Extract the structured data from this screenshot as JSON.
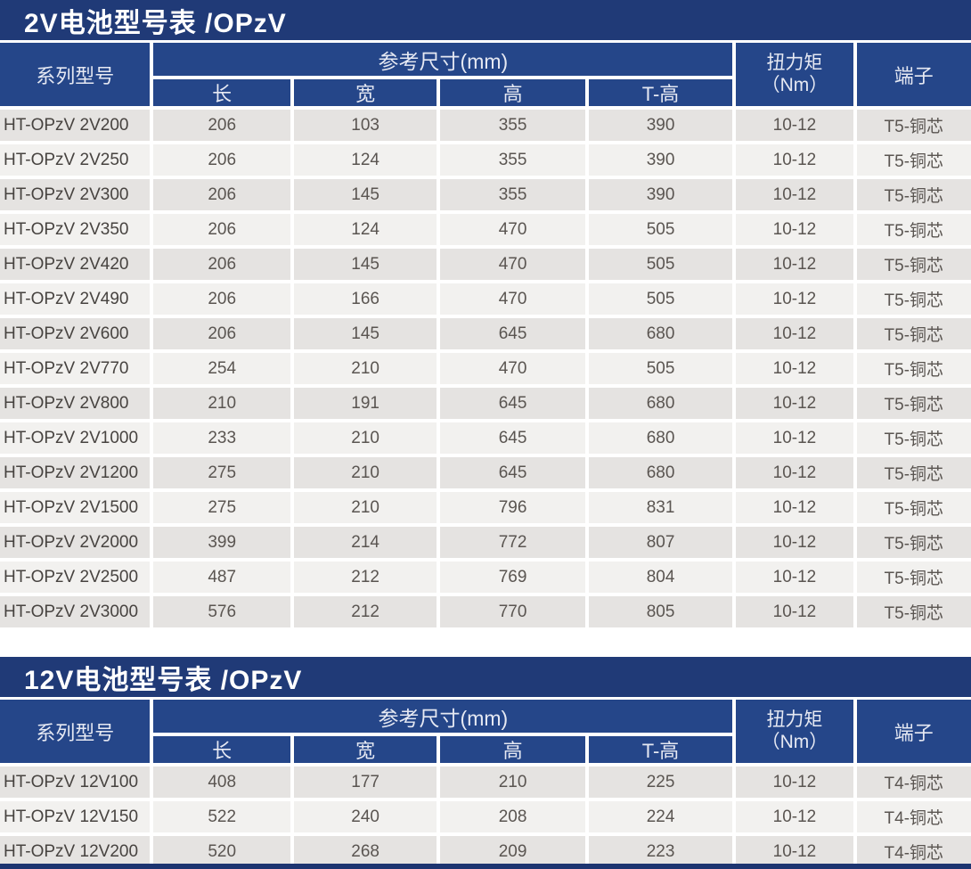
{
  "colors": {
    "title_bar_bg": "#203a77",
    "header_bg": "#254689",
    "row_dark": "#e5e3e1",
    "row_light": "#f2f1ef",
    "bottom_strip": "#1d3470",
    "title_text": "#ffffff",
    "header_text": "#e6e9f3",
    "cell_text": "#5a5551"
  },
  "tables": [
    {
      "title": "2V电池型号表 /OPzV",
      "header": {
        "series_model": "系列型号",
        "dimensions_group": "参考尺寸(mm)",
        "dim_cols": [
          "长",
          "宽",
          "高",
          "T-高"
        ],
        "torque_line1": "扭力矩",
        "torque_line2": "（Nm）",
        "terminal": "端子"
      },
      "rows": [
        {
          "model": "HT-OPzV 2V200",
          "length": "206",
          "width": "103",
          "height": "355",
          "t_height": "390",
          "torque": "10-12",
          "terminal": "T5-铜芯"
        },
        {
          "model": "HT-OPzV 2V250",
          "length": "206",
          "width": "124",
          "height": "355",
          "t_height": "390",
          "torque": "10-12",
          "terminal": "T5-铜芯"
        },
        {
          "model": "HT-OPzV 2V300",
          "length": "206",
          "width": "145",
          "height": "355",
          "t_height": "390",
          "torque": "10-12",
          "terminal": "T5-铜芯"
        },
        {
          "model": "HT-OPzV 2V350",
          "length": "206",
          "width": "124",
          "height": "470",
          "t_height": "505",
          "torque": "10-12",
          "terminal": "T5-铜芯"
        },
        {
          "model": "HT-OPzV 2V420",
          "length": "206",
          "width": "145",
          "height": "470",
          "t_height": "505",
          "torque": "10-12",
          "terminal": "T5-铜芯"
        },
        {
          "model": "HT-OPzV 2V490",
          "length": "206",
          "width": "166",
          "height": "470",
          "t_height": "505",
          "torque": "10-12",
          "terminal": "T5-铜芯"
        },
        {
          "model": "HT-OPzV 2V600",
          "length": "206",
          "width": "145",
          "height": "645",
          "t_height": "680",
          "torque": "10-12",
          "terminal": "T5-铜芯"
        },
        {
          "model": "HT-OPzV 2V770",
          "length": "254",
          "width": "210",
          "height": "470",
          "t_height": "505",
          "torque": "10-12",
          "terminal": "T5-铜芯"
        },
        {
          "model": "HT-OPzV 2V800",
          "length": "210",
          "width": "191",
          "height": "645",
          "t_height": "680",
          "torque": "10-12",
          "terminal": "T5-铜芯"
        },
        {
          "model": "HT-OPzV 2V1000",
          "length": "233",
          "width": "210",
          "height": "645",
          "t_height": "680",
          "torque": "10-12",
          "terminal": "T5-铜芯"
        },
        {
          "model": "HT-OPzV 2V1200",
          "length": "275",
          "width": "210",
          "height": "645",
          "t_height": "680",
          "torque": "10-12",
          "terminal": "T5-铜芯"
        },
        {
          "model": "HT-OPzV 2V1500",
          "length": "275",
          "width": "210",
          "height": "796",
          "t_height": "831",
          "torque": "10-12",
          "terminal": "T5-铜芯"
        },
        {
          "model": "HT-OPzV 2V2000",
          "length": "399",
          "width": "214",
          "height": "772",
          "t_height": "807",
          "torque": "10-12",
          "terminal": "T5-铜芯"
        },
        {
          "model": "HT-OPzV 2V2500",
          "length": "487",
          "width": "212",
          "height": "769",
          "t_height": "804",
          "torque": "10-12",
          "terminal": "T5-铜芯"
        },
        {
          "model": "HT-OPzV 2V3000",
          "length": "576",
          "width": "212",
          "height": "770",
          "t_height": "805",
          "torque": "10-12",
          "terminal": "T5-铜芯"
        }
      ]
    },
    {
      "title": "12V电池型号表 /OPzV",
      "header": {
        "series_model": "系列型号",
        "dimensions_group": "参考尺寸(mm)",
        "dim_cols": [
          "长",
          "宽",
          "高",
          "T-高"
        ],
        "torque_line1": "扭力矩",
        "torque_line2": "（Nm）",
        "terminal": "端子"
      },
      "rows": [
        {
          "model": "HT-OPzV 12V100",
          "length": "408",
          "width": "177",
          "height": "210",
          "t_height": "225",
          "torque": "10-12",
          "terminal": "T4-铜芯"
        },
        {
          "model": "HT-OPzV 12V150",
          "length": "522",
          "width": "240",
          "height": "208",
          "t_height": "224",
          "torque": "10-12",
          "terminal": "T4-铜芯"
        },
        {
          "model": "HT-OPzV 12V200",
          "length": "520",
          "width": "268",
          "height": "209",
          "t_height": "223",
          "torque": "10-12",
          "terminal": "T4-铜芯"
        }
      ]
    }
  ]
}
